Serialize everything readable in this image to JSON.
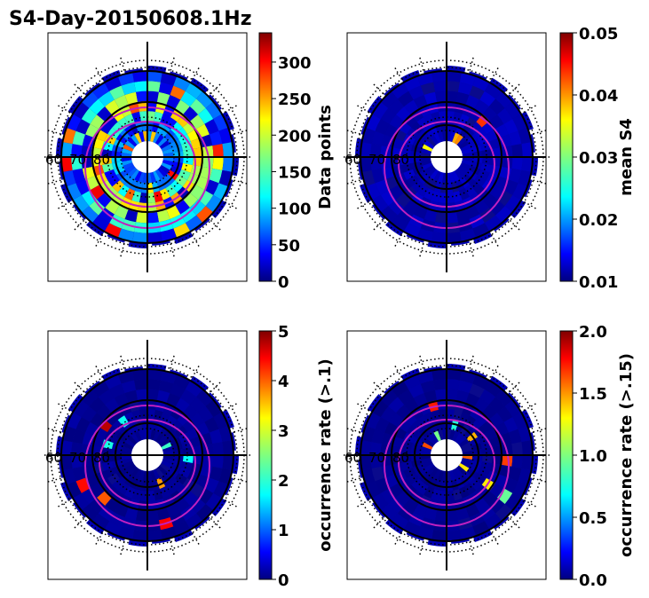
{
  "figure_title": "S4-Day-20150608.1Hz",
  "colors": {
    "background_map": "#0a0a8c",
    "sector_fill": "#0000b4",
    "contour_line": "#c020c0",
    "axis_line": "#000000",
    "jet": [
      "#00007f",
      "#0000ff",
      "#007fff",
      "#00ffff",
      "#7fff7f",
      "#ffff00",
      "#ff7f00",
      "#ff0000",
      "#7f0000"
    ]
  },
  "chart_data": [
    {
      "type": "heatmap",
      "projection": "polar",
      "panel": "top-left",
      "quantity": "Data points",
      "colorbar": {
        "label": "Data points",
        "range": [
          0,
          340
        ],
        "ticks": [
          "0",
          "50",
          "100",
          "150",
          "200",
          "250",
          "300"
        ],
        "tick_values": [
          0,
          50,
          100,
          150,
          200,
          250,
          300
        ]
      },
      "latitude_labels": [
        "60",
        "70",
        "80"
      ],
      "pattern": "ring_dense"
    },
    {
      "type": "heatmap",
      "projection": "polar",
      "panel": "top-right",
      "quantity": "mean S4",
      "colorbar": {
        "label": "mean S4",
        "range": [
          0.01,
          0.05
        ],
        "ticks": [
          "0.01",
          "0.02",
          "0.03",
          "0.04",
          "0.05"
        ],
        "tick_values": [
          0.01,
          0.02,
          0.03,
          0.04,
          0.05
        ]
      },
      "latitude_labels": [
        "60",
        "70",
        "80"
      ],
      "pattern": "sparse"
    },
    {
      "type": "heatmap",
      "projection": "polar",
      "panel": "bottom-left",
      "quantity": "occurrence rate (>.1)",
      "colorbar": {
        "label": "occurrence rate (>.1)",
        "range": [
          0,
          5
        ],
        "ticks": [
          "0",
          "1",
          "2",
          "3",
          "4",
          "5"
        ],
        "tick_values": [
          0,
          1,
          2,
          3,
          4,
          5
        ]
      },
      "latitude_labels": [
        "60",
        "70",
        "80"
      ],
      "pattern": "scattered"
    },
    {
      "type": "heatmap",
      "projection": "polar",
      "panel": "bottom-right",
      "quantity": "occurrence rate (>.15)",
      "colorbar": {
        "label": "occurrence rate (>.15)",
        "range": [
          0.0,
          2.0
        ],
        "ticks": [
          "0.0",
          "0.5",
          "1.0",
          "1.5",
          "2.0"
        ],
        "tick_values": [
          0.0,
          0.5,
          1.0,
          1.5,
          2.0
        ]
      },
      "latitude_labels": [
        "60",
        "70",
        "80"
      ],
      "pattern": "scattered"
    }
  ]
}
